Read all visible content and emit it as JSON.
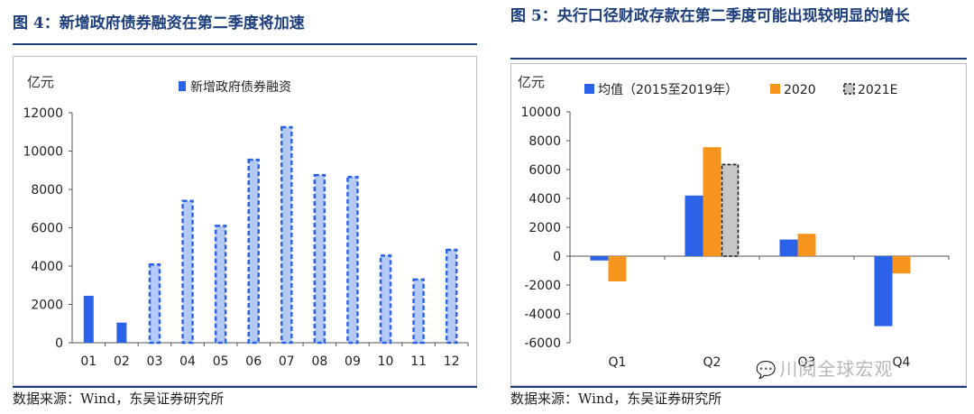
{
  "figures": {
    "left": {
      "title": "图 4：新增政府债券融资在第二季度将加速",
      "source": "数据来源：Wind，东吴证券研究所"
    },
    "right": {
      "title": "图 5：央行口径财政存款在第二季度可能出现较明显的增长",
      "source": "数据来源：Wind，东吴证券研究所"
    }
  },
  "watermark": {
    "text": "川阅全球宏观",
    "icon": "wechat-icon"
  },
  "colors": {
    "title": "#1c3f7c",
    "blue": "#2b63e8",
    "orange": "#f7941d",
    "gray": "#c6c6c6",
    "axis": "#555555"
  },
  "chart_data": [
    {
      "type": "bar",
      "ylabel": "亿元",
      "categories": [
        "01",
        "02",
        "03",
        "04",
        "05",
        "06",
        "07",
        "08",
        "09",
        "10",
        "11",
        "12"
      ],
      "ylim": [
        0,
        12000
      ],
      "yticks": [
        0,
        2000,
        4000,
        6000,
        8000,
        10000,
        12000
      ],
      "legend_position": "top",
      "series": [
        {
          "name": "新增政府债券融资",
          "values": [
            2450,
            1050,
            4080,
            7400,
            6100,
            9550,
            11250,
            8750,
            8650,
            4550,
            3300,
            4850
          ],
          "style": [
            "solid",
            "solid",
            "dashed",
            "dashed",
            "dashed",
            "dashed",
            "dashed",
            "dashed",
            "dashed",
            "dashed",
            "dashed",
            "dashed"
          ]
        }
      ]
    },
    {
      "type": "bar",
      "ylabel": "亿元",
      "categories": [
        "Q1",
        "Q2",
        "Q3",
        "Q4"
      ],
      "ylim": [
        -6000,
        10000
      ],
      "yticks": [
        -6000,
        -4000,
        -2000,
        0,
        2000,
        4000,
        6000,
        8000,
        10000
      ],
      "legend_position": "top",
      "series": [
        {
          "name": "均值（2015至2019年）",
          "values": [
            -300,
            4200,
            1150,
            -4850
          ]
        },
        {
          "name": "2020",
          "values": [
            -1750,
            7550,
            1550,
            -1200
          ]
        },
        {
          "name": "2021E",
          "values": [
            null,
            6350,
            null,
            null
          ]
        }
      ]
    }
  ]
}
